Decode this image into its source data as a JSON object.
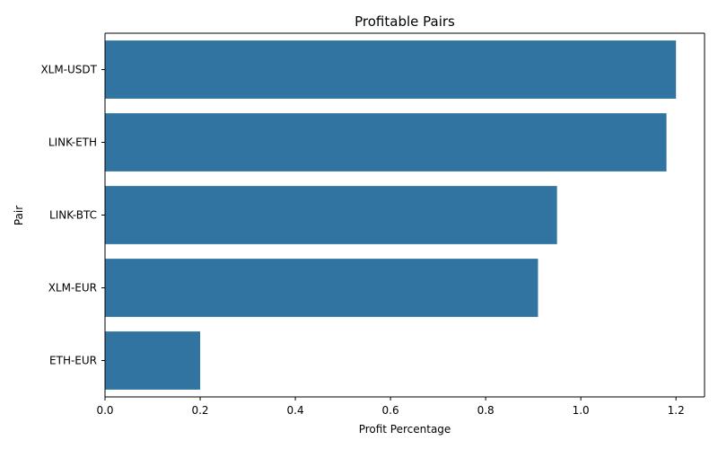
{
  "chart_data": {
    "type": "bar",
    "orientation": "horizontal",
    "title": "Profitable Pairs",
    "xlabel": "Profit Percentage",
    "ylabel": "Pair",
    "categories": [
      "XLM-USDT",
      "LINK-ETH",
      "LINK-BTC",
      "XLM-EUR",
      "ETH-EUR"
    ],
    "values": [
      1.2,
      1.18,
      0.95,
      0.91,
      0.2
    ],
    "xlim": [
      0,
      1.26
    ],
    "xticks": [
      0.0,
      0.2,
      0.4,
      0.6,
      0.8,
      1.0,
      1.2
    ],
    "xtick_labels": [
      "0.0",
      "0.2",
      "0.4",
      "0.6",
      "0.8",
      "1.0",
      "1.2"
    ],
    "grid": false,
    "bar_color": "#3274a1"
  }
}
